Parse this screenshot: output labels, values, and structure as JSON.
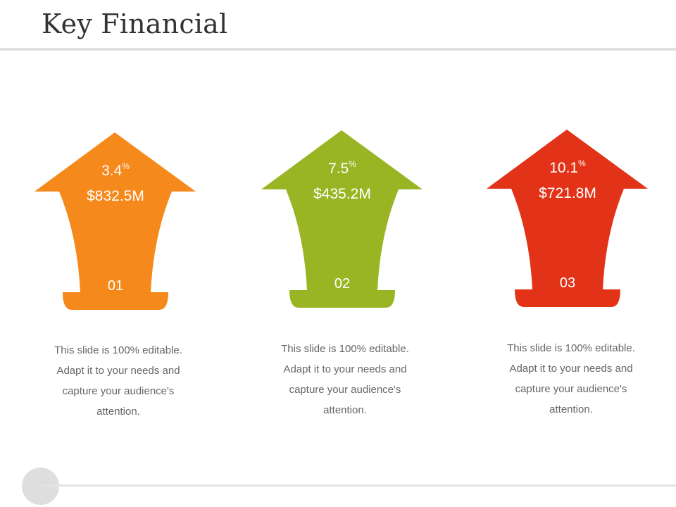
{
  "title": "Key Financial",
  "cards": [
    {
      "percent": "3.4",
      "percent_sign": "%",
      "amount": "$832.5M",
      "number": "01",
      "color": "#f5891b",
      "description": "This slide is 100% editable. Adapt it to your needs and capture your audience's attention."
    },
    {
      "percent": "7.5",
      "percent_sign": "%",
      "amount": "$435.2M",
      "number": "02",
      "color": "#9ab523",
      "description": "This slide is 100% editable. Adapt it to your needs and capture your audience's attention."
    },
    {
      "percent": "10.1",
      "percent_sign": "%",
      "amount": "$721.8M",
      "number": "03",
      "color": "#e23318",
      "description": "This slide is 100% editable. Adapt it to your needs and capture your audience's attention."
    }
  ]
}
